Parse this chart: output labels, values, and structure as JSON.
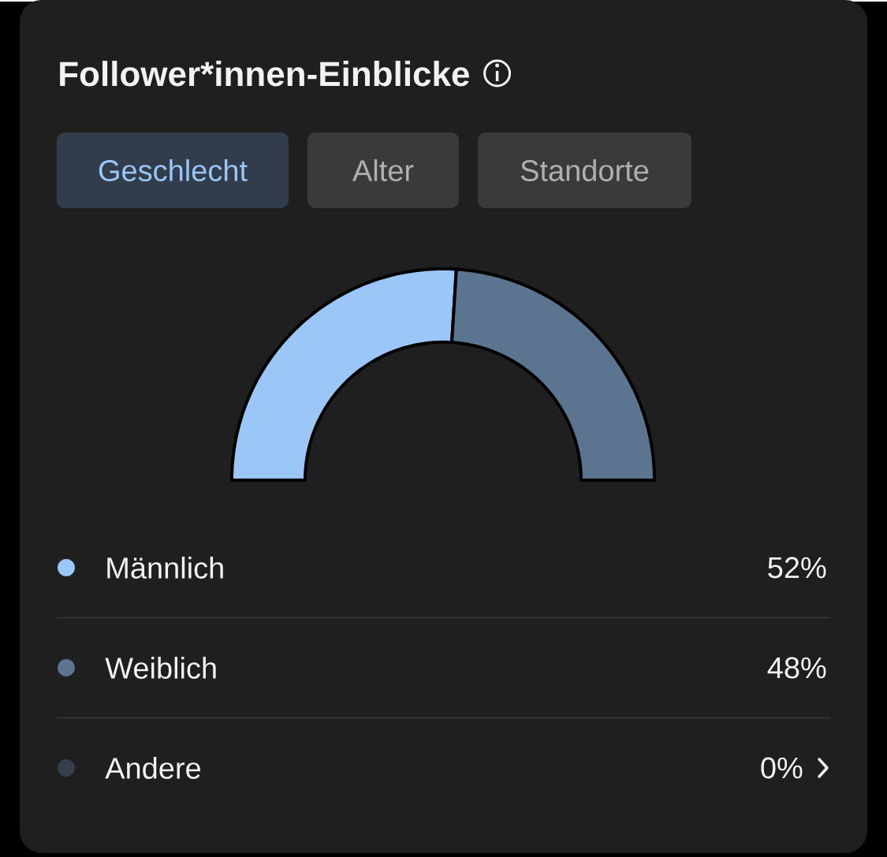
{
  "chart_data": {
    "type": "donut",
    "title": "Follower*innen-Einblicke",
    "categories": [
      "Männlich",
      "Weiblich",
      "Andere"
    ],
    "values": [
      52,
      48,
      0
    ],
    "value_labels": [
      "52%",
      "48%",
      "0%"
    ],
    "colors": [
      "#9ac7f7",
      "#5b7490",
      "#353f4d"
    ],
    "legend": "bottom",
    "annotations": [
      "Geschlecht",
      "Alter",
      "Standorte"
    ]
  }
}
